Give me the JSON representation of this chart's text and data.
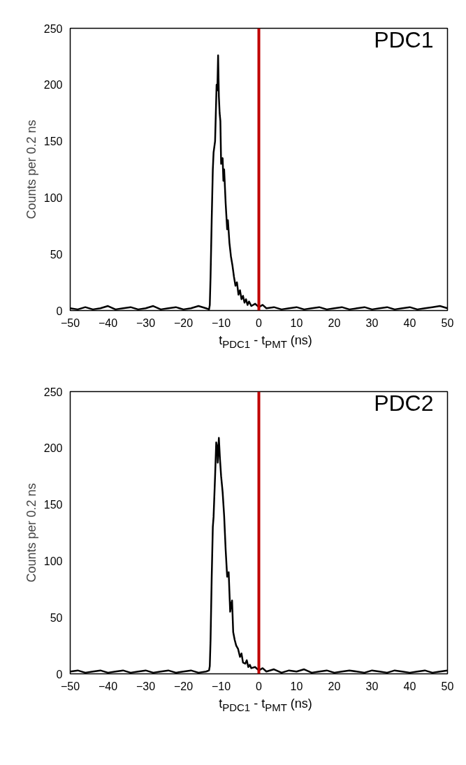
{
  "chart_data": [
    {
      "type": "line",
      "xlabel": "t$_{PDC1}$ - t$_{PMT}$ (ns)",
      "ylabel": "Counts per 0.2 ns",
      "annotations": [
        "PDC1"
      ],
      "x": [
        -50,
        -48,
        -46,
        -44,
        -42,
        -40,
        -38,
        -36,
        -34,
        -32,
        -30,
        -28,
        -26,
        -24,
        -22,
        -20,
        -18,
        -16,
        -14,
        -13.2,
        -13,
        -12.8,
        -12.5,
        -12.2,
        -12,
        -11.6,
        -11.2,
        -11,
        -10.8,
        -10.6,
        -10.4,
        -10.2,
        -10,
        -9.6,
        -9.4,
        -9.2,
        -8.8,
        -8.4,
        -8.2,
        -7.8,
        -7.4,
        -7,
        -6.6,
        -6.2,
        -5.8,
        -5.4,
        -5,
        -4.6,
        -4.2,
        -3.8,
        -3.4,
        -3,
        -2.6,
        -2,
        -1,
        0,
        1,
        2,
        4,
        6,
        8,
        10,
        12,
        14,
        16,
        18,
        20,
        22,
        24,
        26,
        28,
        30,
        32,
        34,
        36,
        38,
        40,
        42,
        44,
        46,
        48,
        50
      ],
      "series": [
        {
          "color": "#000000",
          "values": [
            2,
            1,
            3,
            1,
            2,
            4,
            1,
            2,
            3,
            1,
            2,
            4,
            1,
            2,
            3,
            1,
            2,
            4,
            2,
            1,
            5,
            30,
            80,
            125,
            140,
            150,
            200,
            195,
            226,
            190,
            175,
            168,
            130,
            135,
            115,
            125,
            95,
            72,
            80,
            60,
            48,
            40,
            30,
            22,
            25,
            14,
            18,
            10,
            13,
            7,
            10,
            5,
            8,
            4,
            6,
            3,
            5,
            2,
            3,
            1,
            2,
            3,
            1,
            2,
            3,
            1,
            2,
            3,
            1,
            2,
            3,
            1,
            2,
            3,
            1,
            2,
            3,
            1,
            2,
            3,
            4,
            2
          ]
        }
      ],
      "xlim": [
        -50,
        50
      ],
      "ylim": [
        0,
        250
      ],
      "xticks": [
        -50,
        -40,
        -30,
        -20,
        -10,
        0,
        10,
        20,
        30,
        40,
        50
      ],
      "yticks": [
        0,
        50,
        100,
        150,
        200,
        250
      ],
      "ref_lines": [
        {
          "axis": "x",
          "value": 0,
          "color": "#c00000"
        }
      ],
      "grid": false
    },
    {
      "type": "line",
      "xlabel": "t$_{PDC1}$ - t$_{PMT}$ (ns)",
      "ylabel": "Counts per 0.2 ns",
      "annotations": [
        "PDC2"
      ],
      "x": [
        -50,
        -48,
        -46,
        -44,
        -42,
        -40,
        -38,
        -36,
        -34,
        -32,
        -30,
        -28,
        -26,
        -24,
        -22,
        -20,
        -18,
        -16,
        -14,
        -13.2,
        -13,
        -12.8,
        -12.5,
        -12.2,
        -12,
        -11.6,
        -11.3,
        -11,
        -10.9,
        -10.6,
        -10.3,
        -10,
        -9.6,
        -9.2,
        -8.8,
        -8.4,
        -8,
        -7.6,
        -7.3,
        -7.1,
        -6.8,
        -6.4,
        -6,
        -5.5,
        -5,
        -4.6,
        -4.2,
        -3.6,
        -3.2,
        -2.8,
        -2.4,
        -2,
        -1,
        0,
        1,
        2,
        4,
        6,
        8,
        10,
        12,
        14,
        16,
        18,
        20,
        22,
        24,
        26,
        28,
        30,
        32,
        34,
        36,
        38,
        40,
        42,
        44,
        46,
        48,
        50
      ],
      "series": [
        {
          "color": "#000000",
          "values": [
            2,
            3,
            1,
            2,
            3,
            1,
            2,
            3,
            1,
            2,
            3,
            1,
            2,
            3,
            1,
            2,
            3,
            1,
            2,
            3,
            7,
            30,
            85,
            130,
            139,
            175,
            205,
            200,
            187,
            209,
            190,
            175,
            161,
            140,
            110,
            86,
            90,
            55,
            62,
            65,
            37,
            30,
            25,
            22,
            15,
            18,
            10,
            9,
            12,
            6,
            8,
            5,
            6,
            3,
            5,
            2,
            4,
            1,
            3,
            2,
            4,
            1,
            2,
            3,
            1,
            2,
            3,
            2,
            1,
            3,
            2,
            1,
            3,
            2,
            1,
            2,
            3,
            1,
            2,
            3
          ]
        }
      ],
      "xlim": [
        -50,
        50
      ],
      "ylim": [
        0,
        250
      ],
      "xticks": [
        -50,
        -40,
        -30,
        -20,
        -10,
        0,
        10,
        20,
        30,
        40,
        50
      ],
      "yticks": [
        0,
        50,
        100,
        150,
        200,
        250
      ],
      "ref_lines": [
        {
          "axis": "x",
          "value": 0,
          "color": "#c00000"
        }
      ],
      "grid": false
    }
  ]
}
